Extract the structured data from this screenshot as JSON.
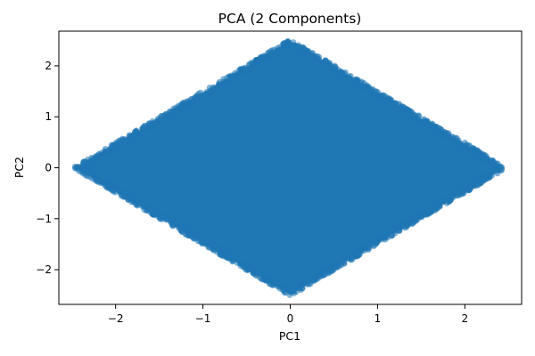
{
  "chart_data": {
    "type": "scatter",
    "title": "PCA (2 Components)",
    "xlabel": "PC1",
    "ylabel": "PC2",
    "xlim": [
      -2.65,
      2.65
    ],
    "ylim": [
      -2.68,
      2.68
    ],
    "x_ticks": [
      -2,
      -1,
      0,
      1,
      2
    ],
    "x_tick_labels": [
      "−2",
      "−1",
      "0",
      "1",
      "2"
    ],
    "y_ticks": [
      -2,
      -1,
      0,
      1,
      2
    ],
    "y_tick_labels": [
      "−2",
      "−1",
      "0",
      "1",
      "2"
    ],
    "grid": false,
    "legend": "none",
    "series": [
      {
        "color": "#1f77b4",
        "region": "diamond",
        "points_outline": [
          {
            "x": -2.45,
            "y": 0
          },
          {
            "x": 0,
            "y": 2.48
          },
          {
            "x": 2.45,
            "y": 0
          },
          {
            "x": 0,
            "y": -2.48
          }
        ]
      }
    ]
  }
}
